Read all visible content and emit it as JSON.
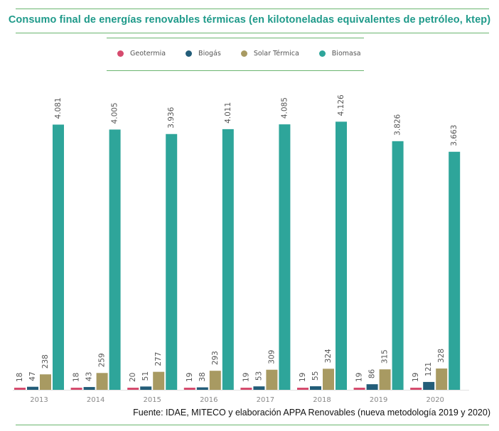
{
  "header": {
    "title": "Consumo final de energías renovables térmicas (en kilotoneladas equivalentes de petróleo, ktep)"
  },
  "footer": {
    "source": "Fuente: IDAE, MITECO y elaboración APPA Renovables (nueva metodología 2019 y 2020)"
  },
  "colors": {
    "title": "#1f9a8a",
    "rule": "#6ab56f",
    "axis_text": "#888888",
    "label_text": "#555555"
  },
  "chart_data": {
    "type": "bar",
    "title": "Consumo final de energías renovables térmicas (en kilotoneladas equivalentes de petróleo, ktep)",
    "categories": [
      "2013",
      "2014",
      "2015",
      "2016",
      "2017",
      "2018",
      "2019",
      "2020"
    ],
    "series": [
      {
        "name": "Geotermia",
        "color": "#d64b6e",
        "values": [
          18,
          18,
          20,
          19,
          19,
          19,
          19,
          19
        ],
        "labels": [
          "18",
          "18",
          "20",
          "19",
          "19",
          "19",
          "19",
          "19"
        ]
      },
      {
        "name": "Biogás",
        "color": "#235d79",
        "values": [
          47,
          43,
          51,
          38,
          53,
          55,
          86,
          121
        ],
        "labels": [
          "47",
          "43",
          "51",
          "38",
          "53",
          "55",
          "86",
          "121"
        ]
      },
      {
        "name": "Solar Térmica",
        "color": "#a89a62",
        "values": [
          238,
          259,
          277,
          293,
          309,
          324,
          315,
          328
        ],
        "labels": [
          "238",
          "259",
          "277",
          "293",
          "309",
          "324",
          "315",
          "328"
        ]
      },
      {
        "name": "Biomasa",
        "color": "#2ea59a",
        "values": [
          4081,
          4005,
          3936,
          4011,
          4085,
          4126,
          3826,
          3663
        ],
        "labels": [
          "4.081",
          "4.005",
          "3.936",
          "4.011",
          "4.085",
          "4.126",
          "3.826",
          "3.663"
        ]
      }
    ],
    "xlabel": "",
    "ylabel": "",
    "ylim": [
      0,
      4130
    ],
    "grid": false,
    "legend": "top-center",
    "data_labels": "rotated-vertical"
  }
}
